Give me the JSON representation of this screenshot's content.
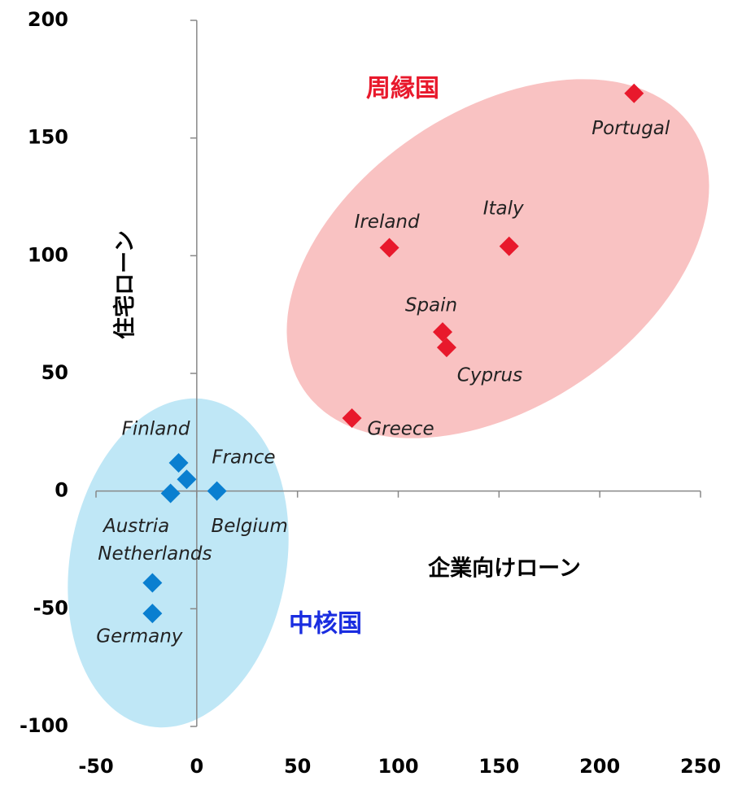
{
  "chart_data": {
    "type": "scatter",
    "x_label": "企業向けローン",
    "y_label": "住宅ローン",
    "xlim": [
      -50,
      250
    ],
    "xticks": [
      -50,
      0,
      50,
      100,
      150,
      200,
      250
    ],
    "ylim": [
      -100,
      200
    ],
    "yticks": [
      -100,
      -50,
      0,
      50,
      100,
      150,
      200
    ],
    "series": [
      {
        "name": "周縁国",
        "color": "#e8192c",
        "labels": [
          "Portugal",
          "Ireland",
          "Italy",
          "Spain",
          "Cyprus",
          "Greece"
        ],
        "x": [
          217,
          95.6,
          155,
          122,
          124,
          77
        ],
        "values": [
          169,
          103.4,
          104,
          67.6,
          61,
          31
        ]
      },
      {
        "name": "中核国",
        "color": "#0a7fd0",
        "labels": [
          "Finland",
          "France",
          "Austria",
          "Belgium",
          "Netherlands",
          "Germany"
        ],
        "x": [
          -9,
          -5,
          -13,
          10,
          -22,
          -22
        ],
        "values": [
          12,
          5,
          -1,
          0,
          -39,
          -52
        ]
      }
    ]
  }
}
